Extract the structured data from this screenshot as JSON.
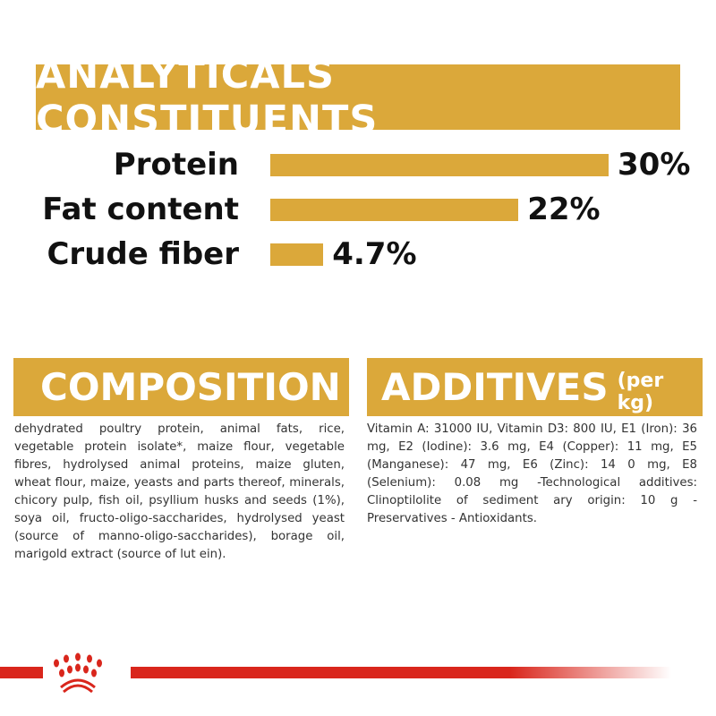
{
  "header": {
    "title": "ANALYTICALS CONSTITUENTS"
  },
  "analyticals": [
    {
      "label": "Protein",
      "value": "30%",
      "percent": 30
    },
    {
      "label": "Fat content",
      "value": "22%",
      "percent": 22
    },
    {
      "label": "Crude fiber",
      "value": "4.7%",
      "percent": 4.7
    }
  ],
  "composition": {
    "title": "COMPOSITION",
    "text": "dehydrated poultry protein, animal fats, rice, vegetable protein isolate*, maize flour, vegetable fibres, hydrolysed animal proteins, maize gluten, wheat flour, maize, yeasts and parts thereof, minerals, chicory pulp, fish oil, psyllium husks and seeds (1%), soya oil, fructo-oligo-saccharides, hydrolysed yeast (source of manno-oligo-saccharides), borage oil, marigold extract (source of lut ein)."
  },
  "additives": {
    "title": "ADDITIVES",
    "unit": "(per kg)",
    "text": "Vitamin A: 31000 IU, Vitamin D3: 800 IU, E1 (Iron): 36 mg, E2 (Iodine): 3.6 mg, E4 (Copper): 11 mg, E5 (Manganese): 47 mg, E6 (Zinc): 14 0 mg, E8 (Selenium): 0.08 mg -Technological additives: Clinoptilolite of sediment ary origin: 10 g - Preservatives - Antioxidants."
  },
  "colors": {
    "gold": "#dba83a",
    "red": "#d9261c"
  },
  "logo": {
    "icon": "royal-canin-crown-icon"
  }
}
